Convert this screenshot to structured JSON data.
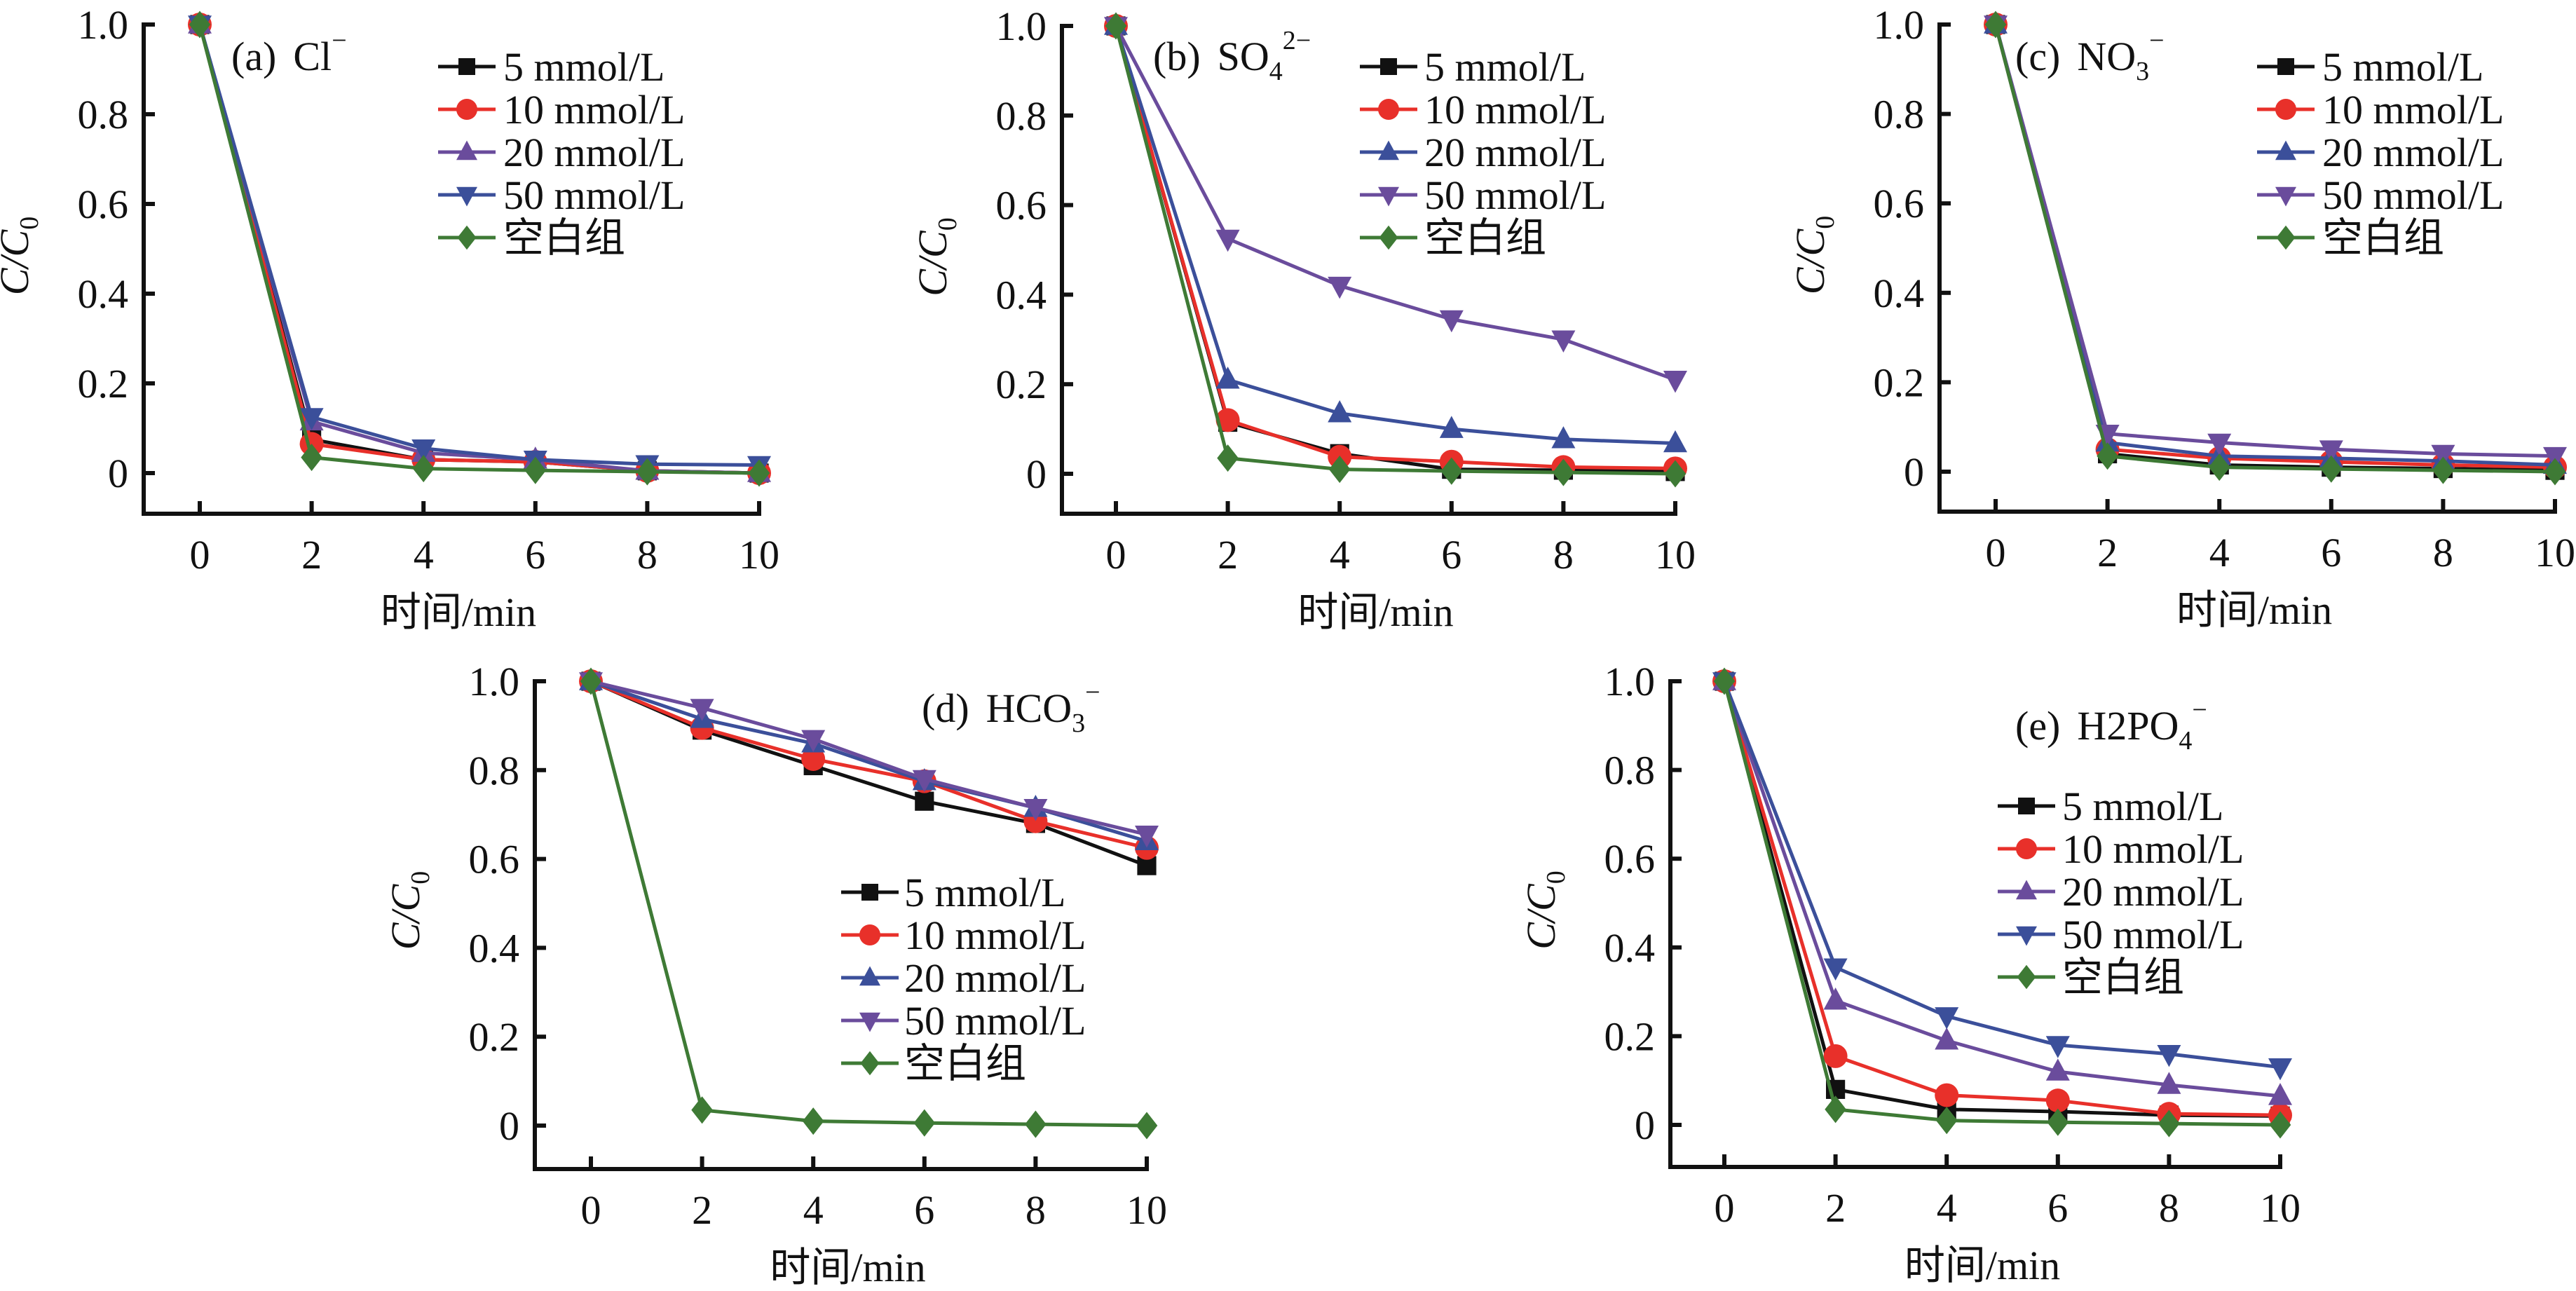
{
  "chart_data": [
    {
      "id": "a",
      "type": "line",
      "title": "(a)  Cl⁻",
      "title_parts": {
        "label": "(a)",
        "ion": "Cl",
        "sub": "",
        "sup": "−"
      },
      "xlabel": "时间/min",
      "ylabel": "C/C0",
      "ylabel_parts": {
        "main": "C/C",
        "sub": "0"
      },
      "x": [
        0,
        2,
        4,
        6,
        8,
        10
      ],
      "xticks": [
        "0",
        "2",
        "4",
        "6",
        "8",
        "10"
      ],
      "yticks": [
        "0",
        "0.2",
        "0.4",
        "0.6",
        "0.8",
        "1.0"
      ],
      "ytick_values": [
        0,
        0.2,
        0.4,
        0.6,
        0.8,
        1.0
      ],
      "xlim": [
        -1.2,
        10
      ],
      "ylim": [
        -0.09,
        1.0
      ],
      "legend_position": "top-right",
      "series": [
        {
          "name": "5 mmol/L",
          "marker": "square",
          "color": "#111111",
          "values": [
            1.0,
            0.075,
            0.03,
            0.025,
            0.005,
            0.0
          ]
        },
        {
          "name": "10 mmol/L",
          "marker": "circle",
          "color": "#e8302a",
          "values": [
            1.0,
            0.065,
            0.03,
            0.025,
            0.005,
            0.0
          ]
        },
        {
          "name": "20 mmol/L",
          "marker": "triangle-up",
          "color": "#6a4c9c",
          "values": [
            1.0,
            0.115,
            0.045,
            0.03,
            0.005,
            0.0
          ]
        },
        {
          "name": "50 mmol/L",
          "marker": "triangle-down",
          "color": "#3b4f9a",
          "values": [
            1.0,
            0.125,
            0.055,
            0.03,
            0.02,
            0.018
          ]
        },
        {
          "name": "空白组",
          "marker": "diamond",
          "color": "#3e7a35",
          "values": [
            1.0,
            0.035,
            0.01,
            0.006,
            0.003,
            0.0
          ]
        }
      ]
    },
    {
      "id": "b",
      "type": "line",
      "title": "(b)  SO4 2−",
      "title_parts": {
        "label": "(b)",
        "ion": "SO",
        "sub": "4",
        "sup": "2−"
      },
      "xlabel": "时间/min",
      "ylabel": "C/C0",
      "ylabel_parts": {
        "main": "C/C",
        "sub": "0"
      },
      "x": [
        0,
        2,
        4,
        6,
        8,
        10
      ],
      "xticks": [
        "0",
        "2",
        "4",
        "6",
        "8",
        "10"
      ],
      "yticks": [
        "0",
        "0.2",
        "0.4",
        "0.6",
        "0.8",
        "1.0"
      ],
      "ytick_values": [
        0,
        0.2,
        0.4,
        0.6,
        0.8,
        1.0
      ],
      "xlim": [
        -1.2,
        10
      ],
      "ylim": [
        -0.09,
        1.0
      ],
      "legend_position": "top-right",
      "series": [
        {
          "name": "5 mmol/L",
          "marker": "square",
          "color": "#111111",
          "values": [
            1.0,
            0.115,
            0.045,
            0.01,
            0.008,
            0.005
          ]
        },
        {
          "name": "10 mmol/L",
          "marker": "circle",
          "color": "#e8302a",
          "values": [
            1.0,
            0.12,
            0.038,
            0.027,
            0.015,
            0.012
          ]
        },
        {
          "name": "20 mmol/L",
          "marker": "triangle-up",
          "color": "#3b4f9a",
          "values": [
            1.0,
            0.21,
            0.135,
            0.1,
            0.077,
            0.068
          ]
        },
        {
          "name": "50 mmol/L",
          "marker": "triangle-down",
          "color": "#6a4c9c",
          "values": [
            1.0,
            0.525,
            0.42,
            0.345,
            0.3,
            0.21
          ]
        },
        {
          "name": "空白组",
          "marker": "diamond",
          "color": "#3e7a35",
          "values": [
            1.0,
            0.035,
            0.01,
            0.006,
            0.003,
            0.0
          ]
        }
      ]
    },
    {
      "id": "c",
      "type": "line",
      "title": "(c)  NO3⁻",
      "title_parts": {
        "label": "(c)",
        "ion": "NO",
        "sub": "3",
        "sup": "−"
      },
      "xlabel": "时间/min",
      "ylabel": "C/C0",
      "ylabel_parts": {
        "main": "C/C",
        "sub": "0"
      },
      "x": [
        0,
        2,
        4,
        6,
        8,
        10
      ],
      "xticks": [
        "0",
        "2",
        "4",
        "6",
        "8",
        "10"
      ],
      "yticks": [
        "0",
        "0.2",
        "0.4",
        "0.6",
        "0.8",
        "1.0"
      ],
      "ytick_values": [
        0,
        0.2,
        0.4,
        0.6,
        0.8,
        1.0
      ],
      "xlim": [
        -1.2,
        10
      ],
      "ylim": [
        -0.09,
        1.0
      ],
      "legend_position": "top-right",
      "series": [
        {
          "name": "5 mmol/L",
          "marker": "square",
          "color": "#111111",
          "values": [
            1.0,
            0.04,
            0.015,
            0.01,
            0.007,
            0.003
          ]
        },
        {
          "name": "10 mmol/L",
          "marker": "circle",
          "color": "#e8302a",
          "values": [
            1.0,
            0.05,
            0.03,
            0.022,
            0.015,
            0.01
          ]
        },
        {
          "name": "20 mmol/L",
          "marker": "triangle-up",
          "color": "#3b4f9a",
          "values": [
            1.0,
            0.065,
            0.035,
            0.03,
            0.024,
            0.015
          ]
        },
        {
          "name": "50 mmol/L",
          "marker": "triangle-down",
          "color": "#6a4c9c",
          "values": [
            1.0,
            0.085,
            0.065,
            0.05,
            0.04,
            0.035
          ]
        },
        {
          "name": "空白组",
          "marker": "diamond",
          "color": "#3e7a35",
          "values": [
            1.0,
            0.035,
            0.01,
            0.006,
            0.003,
            0.0
          ]
        }
      ]
    },
    {
      "id": "d",
      "type": "line",
      "title": "(d)  HCO3⁻",
      "title_parts": {
        "label": "(d)",
        "ion": "HCO",
        "sub": "3",
        "sup": "−"
      },
      "xlabel": "时间/min",
      "ylabel": "C/C0",
      "ylabel_parts": {
        "main": "C/C",
        "sub": "0"
      },
      "x": [
        0,
        2,
        4,
        6,
        8,
        10
      ],
      "xticks": [
        "0",
        "2",
        "4",
        "6",
        "8",
        "10"
      ],
      "yticks": [
        "0",
        "0.2",
        "0.4",
        "0.6",
        "0.8",
        "1.0"
      ],
      "ytick_values": [
        0,
        0.2,
        0.4,
        0.6,
        0.8,
        1.0
      ],
      "xlim": [
        -1.2,
        10
      ],
      "ylim": [
        -0.09,
        1.0
      ],
      "legend_position": "center-right",
      "series": [
        {
          "name": "5 mmol/L",
          "marker": "square",
          "color": "#111111",
          "values": [
            1.0,
            0.89,
            0.81,
            0.73,
            0.68,
            0.585
          ]
        },
        {
          "name": "10 mmol/L",
          "marker": "circle",
          "color": "#e8302a",
          "values": [
            1.0,
            0.895,
            0.825,
            0.775,
            0.685,
            0.625
          ]
        },
        {
          "name": "20 mmol/L",
          "marker": "triangle-up",
          "color": "#3b4f9a",
          "values": [
            1.0,
            0.915,
            0.86,
            0.775,
            0.715,
            0.64
          ]
        },
        {
          "name": "50 mmol/L",
          "marker": "triangle-down",
          "color": "#6a4c9c",
          "values": [
            1.0,
            0.94,
            0.87,
            0.78,
            0.715,
            0.655
          ]
        },
        {
          "name": "空白组",
          "marker": "diamond",
          "color": "#3e7a35",
          "values": [
            1.0,
            0.035,
            0.01,
            0.006,
            0.003,
            0.0
          ]
        }
      ]
    },
    {
      "id": "e",
      "type": "line",
      "title": "(e)  H2PO4⁻",
      "title_parts": {
        "label": "(e)",
        "ion": "H2PO",
        "sub": "4",
        "sup": "−"
      },
      "xlabel": "时间/min",
      "ylabel": "C/C0",
      "ylabel_parts": {
        "main": "C/C",
        "sub": "0"
      },
      "x": [
        0,
        2,
        4,
        6,
        8,
        10
      ],
      "xticks": [
        "0",
        "2",
        "4",
        "6",
        "8",
        "10"
      ],
      "yticks": [
        "0",
        "0.2",
        "0.4",
        "0.6",
        "0.8",
        "1.0"
      ],
      "ytick_values": [
        0,
        0.2,
        0.4,
        0.6,
        0.8,
        1.0
      ],
      "xlim": [
        -1.2,
        10
      ],
      "ylim": [
        -0.09,
        1.0
      ],
      "legend_position": "right",
      "series": [
        {
          "name": "5 mmol/L",
          "marker": "square",
          "color": "#111111",
          "values": [
            1.0,
            0.08,
            0.035,
            0.03,
            0.022,
            0.02
          ]
        },
        {
          "name": "10 mmol/L",
          "marker": "circle",
          "color": "#e8302a",
          "values": [
            1.0,
            0.155,
            0.067,
            0.055,
            0.025,
            0.022
          ]
        },
        {
          "name": "20 mmol/L",
          "marker": "triangle-up",
          "color": "#6a4c9c",
          "values": [
            1.0,
            0.28,
            0.19,
            0.12,
            0.09,
            0.065
          ]
        },
        {
          "name": "50 mmol/L",
          "marker": "triangle-down",
          "color": "#3b4f9a",
          "values": [
            1.0,
            0.355,
            0.245,
            0.18,
            0.16,
            0.13
          ]
        },
        {
          "name": "空白组",
          "marker": "diamond",
          "color": "#3e7a35",
          "values": [
            1.0,
            0.035,
            0.01,
            0.006,
            0.003,
            0.0
          ]
        }
      ]
    }
  ]
}
